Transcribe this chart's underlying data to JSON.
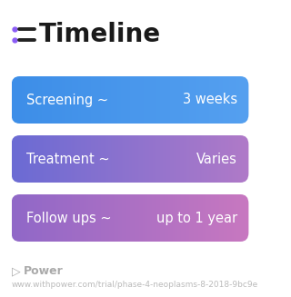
{
  "title": "Timeline",
  "title_fontsize": 20,
  "title_color": "#1a1a1a",
  "title_icon_color": "#8B5CF6",
  "background_color": "#ffffff",
  "rows": [
    {
      "label": "Screening ~",
      "value": "3 weeks",
      "color_left": "#3D8EE8",
      "color_right": "#55A0F0"
    },
    {
      "label": "Treatment ~",
      "value": "Varies",
      "color_left": "#6B6BD4",
      "color_right": "#B07AC8"
    },
    {
      "label": "Follow ups ~",
      "value": "up to 1 year",
      "color_left": "#9068C8",
      "color_right": "#C878C0"
    }
  ],
  "footer_logo_color": "#aaaaaa",
  "footer_text": "Power",
  "footer_url": "www.withpower.com/trial/phase-4-neoplasms-8-2018-9bc9e",
  "bar_text_fontsize": 10.5,
  "footer_fontsize": 6.5
}
